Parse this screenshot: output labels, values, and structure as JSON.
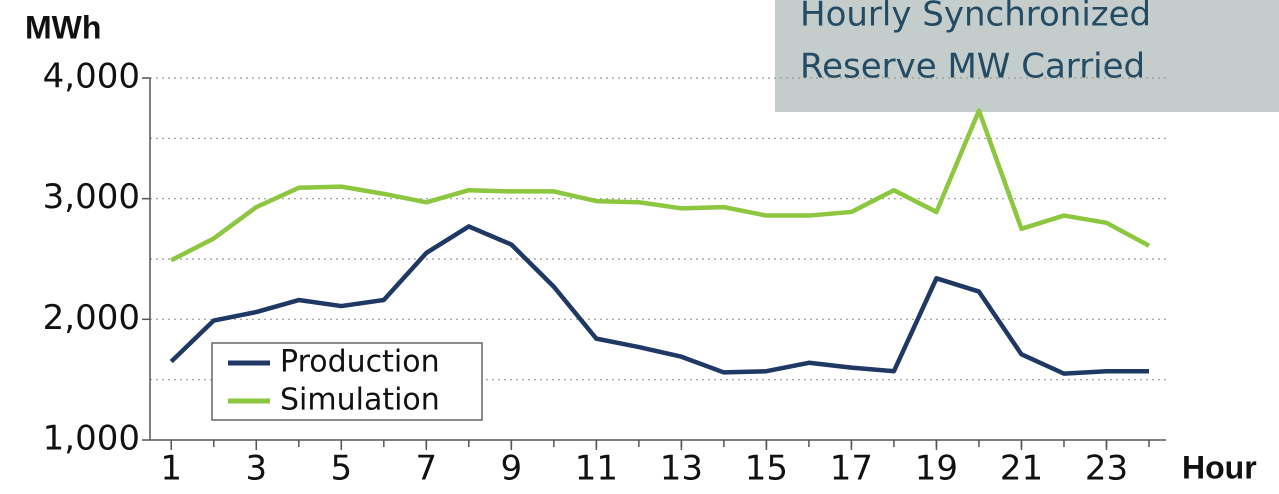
{
  "chart_data": {
    "type": "line",
    "title": [
      "Hourly Synchronized",
      "Reserve MW Carried"
    ],
    "y_label": "MWh",
    "x_label": "Hour",
    "x": [
      1,
      2,
      3,
      4,
      5,
      6,
      7,
      8,
      9,
      10,
      11,
      12,
      13,
      14,
      15,
      16,
      17,
      18,
      19,
      20,
      21,
      22,
      23,
      24
    ],
    "xlim": [
      0.5,
      24.4
    ],
    "xticks": [
      1,
      3,
      5,
      7,
      9,
      11,
      13,
      15,
      17,
      19,
      21,
      23
    ],
    "ylim": [
      1000,
      4000
    ],
    "yticks": [
      {
        "value": 1000,
        "label": "1,000"
      },
      {
        "value": 2000,
        "label": "2,000"
      },
      {
        "value": 3000,
        "label": "3,000"
      },
      {
        "value": 4000,
        "label": "4,000"
      }
    ],
    "minor_yticks": [
      1500,
      2500,
      3500
    ],
    "grid": true,
    "legend": "lower left",
    "series": [
      {
        "name": "Production",
        "color": "#1f3864",
        "values": [
          1650,
          1990,
          2060,
          2160,
          2110,
          2160,
          2550,
          2770,
          2620,
          2270,
          1840,
          1770,
          1690,
          1560,
          1570,
          1640,
          1600,
          1570,
          2340,
          2230,
          1710,
          1550,
          1570,
          1570
        ]
      },
      {
        "name": "Simulation",
        "color": "#8dc63f",
        "values": [
          2490,
          2670,
          2930,
          3090,
          3100,
          3040,
          2970,
          3070,
          3060,
          3060,
          2980,
          2970,
          2920,
          2930,
          2860,
          2860,
          2890,
          3070,
          2890,
          3730,
          2750,
          2860,
          2800,
          2610
        ]
      }
    ]
  }
}
